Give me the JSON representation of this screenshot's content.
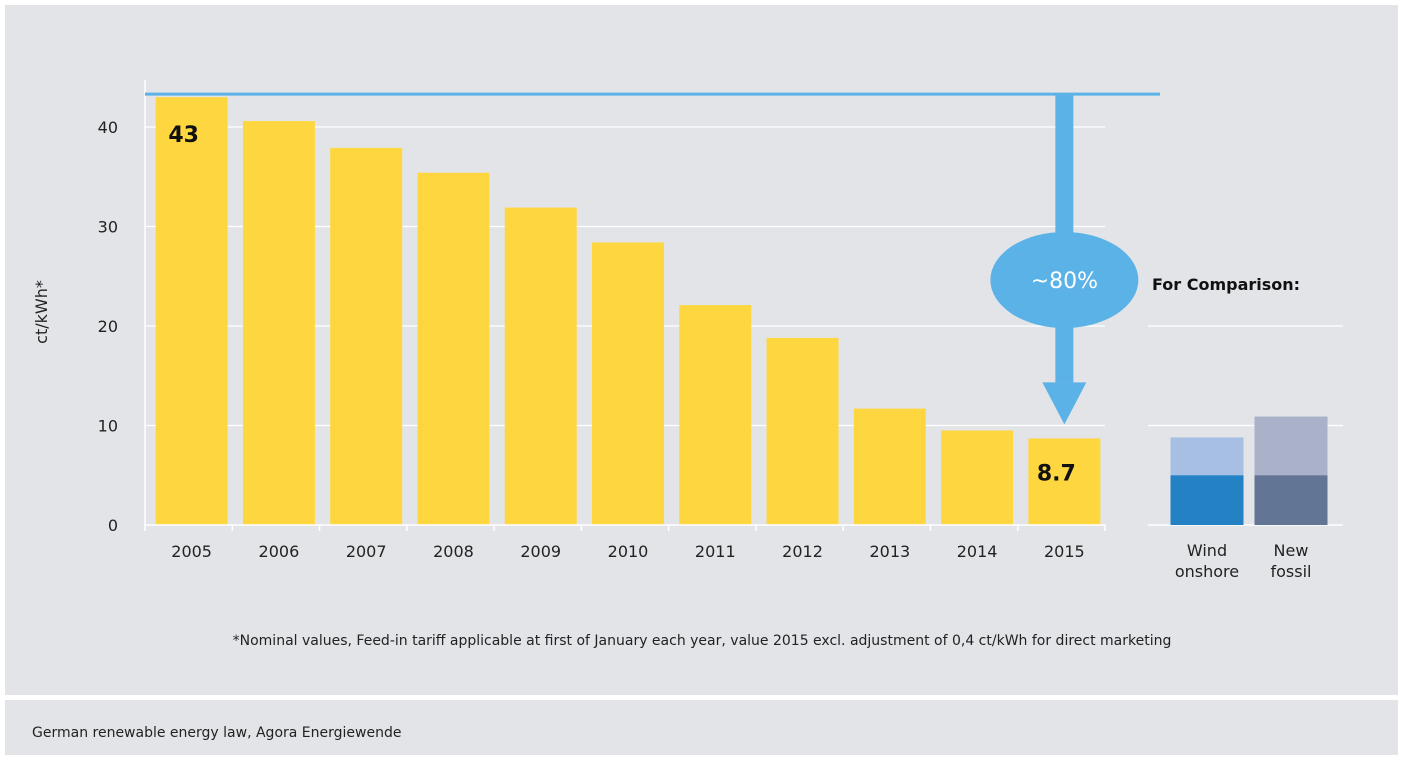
{
  "chart_data": {
    "type": "bar",
    "ylabel": "ct/kWh*",
    "ylim": [
      0,
      43
    ],
    "yticks": [
      0,
      10,
      20,
      30,
      40
    ],
    "grid": true,
    "categories": [
      "2005",
      "2006",
      "2007",
      "2008",
      "2009",
      "2010",
      "2011",
      "2012",
      "2013",
      "2014",
      "2015"
    ],
    "values": [
      43,
      40.6,
      37.9,
      35.4,
      31.9,
      28.4,
      22.1,
      18.8,
      11.7,
      9.5,
      8.7
    ],
    "data_labels": [
      {
        "category": "2005",
        "text": "43"
      },
      {
        "category": "2015",
        "text": "8.7"
      }
    ],
    "annotation": {
      "text": "~80%",
      "from_value": 43,
      "to_value": 8.7
    },
    "colors": {
      "bars": "#fed740",
      "arrow": "#5bb2e7",
      "bubble": "#5bb2e7"
    },
    "comparison": {
      "title": "For Comparison:",
      "bars": [
        {
          "label_line1": "Wind",
          "label_line2": "onshore",
          "low": 5,
          "high": 8.8,
          "color_low": "#2381c4",
          "color_high": "#a6bfe3"
        },
        {
          "label_line1": "New",
          "label_line2": "fossil",
          "low": 5,
          "high": 10.9,
          "color_low": "#627594",
          "color_high": "#a9b2c9"
        }
      ]
    }
  },
  "footnote": "*Nominal values, Feed-in tariff applicable at first of January each year, value 2015 excl. adjustment of 0,4 ct/kWh for direct marketing",
  "source": "German renewable energy law, Agora Energiewende"
}
